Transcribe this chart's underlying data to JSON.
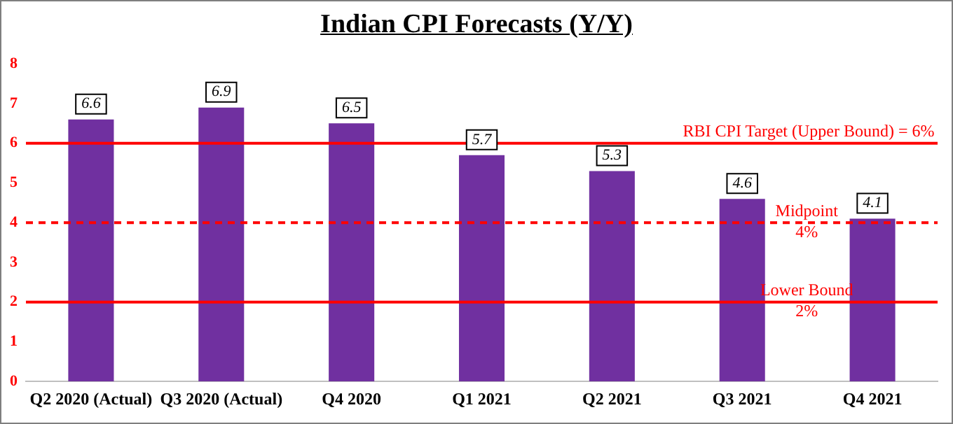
{
  "chart_data": {
    "type": "bar",
    "title": "Indian CPI Forecasts (Y/Y)",
    "categories": [
      "Q2 2020 (Actual)",
      "Q3 2020 (Actual)",
      "Q4 2020",
      "Q1 2021",
      "Q2 2021",
      "Q3 2021",
      "Q4 2021"
    ],
    "values": [
      6.6,
      6.9,
      6.5,
      5.7,
      5.3,
      4.6,
      4.1
    ],
    "color": "#7030a0",
    "ylim": [
      0,
      8
    ],
    "yticks": [
      0,
      1,
      2,
      3,
      4,
      5,
      6,
      7,
      8
    ],
    "grid": false,
    "legend": false,
    "data_labels": true,
    "ref_lines": [
      {
        "axis": "y",
        "value": 6,
        "label": "RBI CPI Target (Upper Bound) = 6%",
        "color": "#ff0000",
        "line_style": "solid"
      },
      {
        "axis": "y",
        "value": 4,
        "label": "Midpoint\n4%",
        "color": "#ff0000",
        "line_style": "dashed"
      },
      {
        "axis": "y",
        "value": 2,
        "label": "Lower Bound\n2%",
        "color": "#ff0000",
        "line_style": "solid"
      }
    ]
  }
}
